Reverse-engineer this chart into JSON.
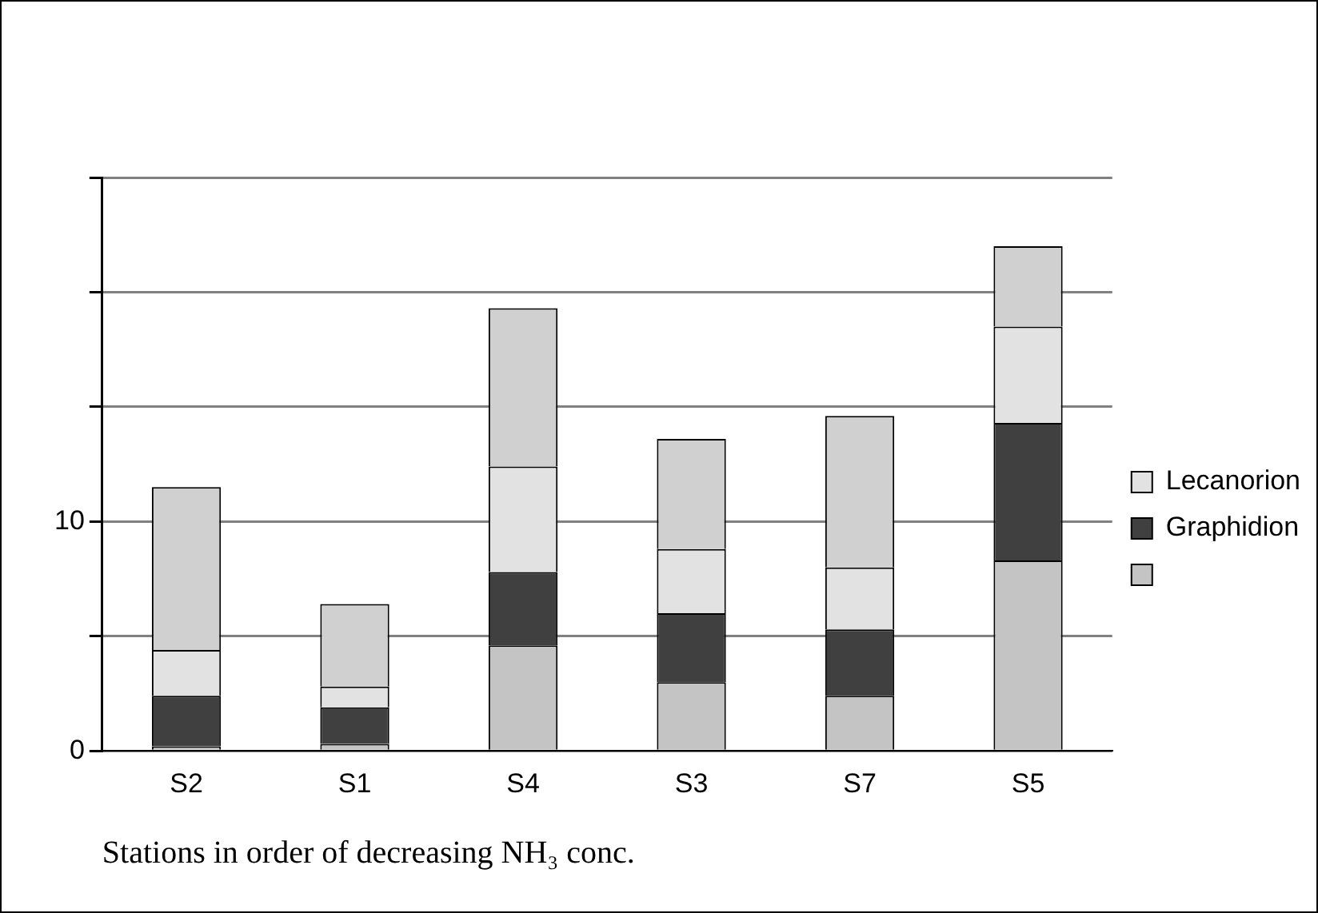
{
  "chart_data": {
    "type": "bar",
    "stacked": true,
    "xlabel": "Stations in order of decreasing NH₃ conc.",
    "categories": [
      "S2",
      "S1",
      "S4",
      "S3",
      "S7",
      "S5"
    ],
    "series": [
      {
        "color": "#c4c4c4",
        "values": [
          0.2,
          0.3,
          4.6,
          3.0,
          2.4,
          8.3
        ]
      },
      {
        "name": "Graphidion",
        "color": "#404040",
        "values": [
          2.2,
          1.6,
          3.2,
          3.0,
          2.9,
          6.0
        ]
      },
      {
        "name": "Lecanorion",
        "color": "#e2e2e2",
        "values": [
          2.0,
          0.9,
          4.6,
          2.8,
          2.7,
          4.2
        ]
      },
      {
        "color": "#d0d0d0",
        "values": [
          7.1,
          3.6,
          6.9,
          4.8,
          6.6,
          3.5
        ]
      }
    ],
    "ylim": [
      0,
      25
    ],
    "yticks": [
      0,
      {
        "value": 5,
        "label": null
      },
      10,
      {
        "value": 15,
        "label": null
      },
      {
        "value": 20,
        "label": null
      },
      {
        "value": 25,
        "label": null
      }
    ],
    "grid": "y",
    "legend": "right"
  }
}
